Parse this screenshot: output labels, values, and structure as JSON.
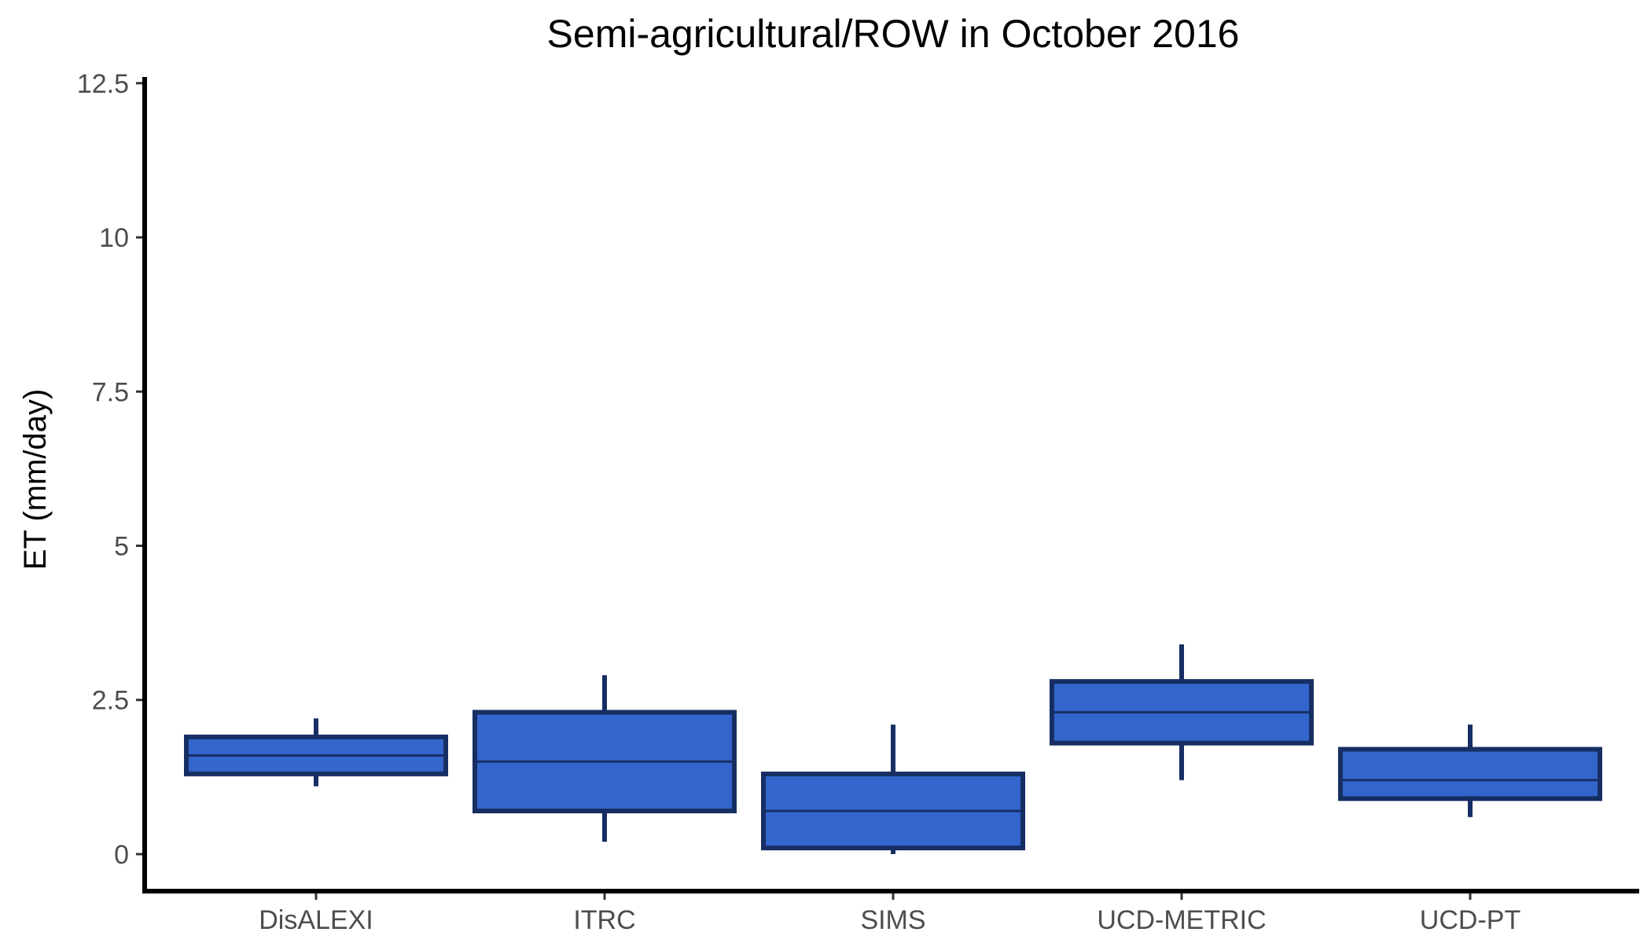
{
  "chart_data": {
    "type": "box",
    "title": "Semi-agricultural/ROW in October 2016",
    "xlabel": "",
    "ylabel": "ET (mm/day)",
    "ylim": [
      -0.6,
      12.6
    ],
    "y_ticks": [
      0,
      2.5,
      5,
      7.5,
      10,
      12.5
    ],
    "y_tick_labels": [
      "0",
      "2.5",
      "5",
      "7.5",
      "10",
      "12.5"
    ],
    "categories": [
      "DisALEXI",
      "ITRC",
      "SIMS",
      "UCD-METRIC",
      "UCD-PT"
    ],
    "boxes": [
      {
        "category": "DisALEXI",
        "whisker_low": 1.1,
        "q1": 1.3,
        "median": 1.6,
        "q3": 1.9,
        "whisker_high": 2.2
      },
      {
        "category": "ITRC",
        "whisker_low": 0.2,
        "q1": 0.7,
        "median": 1.5,
        "q3": 2.3,
        "whisker_high": 2.9
      },
      {
        "category": "SIMS",
        "whisker_low": 0.0,
        "q1": 0.1,
        "median": 0.7,
        "q3": 1.3,
        "whisker_high": 2.1
      },
      {
        "category": "UCD-METRIC",
        "whisker_low": 1.2,
        "q1": 1.8,
        "median": 2.3,
        "q3": 2.8,
        "whisker_high": 3.4
      },
      {
        "category": "UCD-PT",
        "whisker_low": 0.6,
        "q1": 0.9,
        "median": 1.2,
        "q3": 1.7,
        "whisker_high": 2.1
      }
    ],
    "fill_color": "#3366cc",
    "stroke_color": "#172e63",
    "grid": false,
    "legend": "none"
  }
}
